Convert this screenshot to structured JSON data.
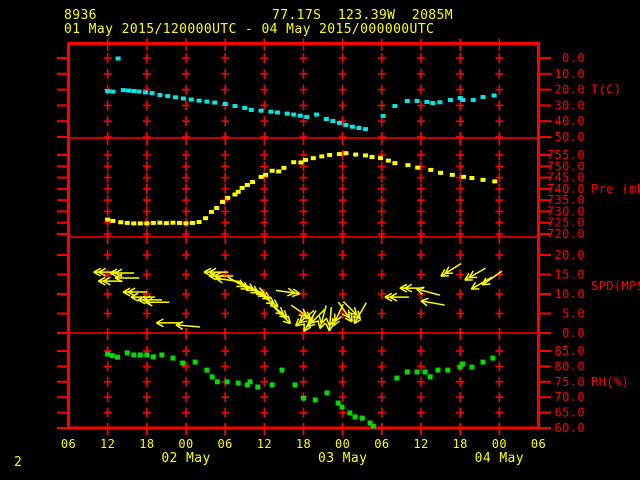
{
  "header": {
    "station_id": "8936",
    "location": "77.17S  123.39W  2085M",
    "period": "01 May 2015/120000UTC - 04 May 2015/000000UTC"
  },
  "footer": {
    "page_number": "2"
  },
  "colors": {
    "background": "#000000",
    "axis": "#ff0000",
    "header_text": "#ffff00",
    "temp": "#00e8e8",
    "pressure": "#ffff00",
    "wind": "#ffff00",
    "humidity": "#00dd00"
  },
  "chart_data": {
    "type": "multi-panel-timeseries",
    "title": "AWS meteogram",
    "x_axis": {
      "unit": "hours_from_first_tick_06UTC_01May",
      "tick_step_hours": 6,
      "tick_hours": [
        "06",
        "12",
        "18",
        "00",
        "06",
        "12",
        "18",
        "00",
        "06",
        "12",
        "18",
        "00",
        "06"
      ],
      "date_labels": [
        {
          "text": "02 May",
          "tick_index": 3
        },
        {
          "text": "03 May",
          "tick_index": 7
        },
        {
          "text": "04 May",
          "tick_index": 11
        }
      ]
    },
    "panels": [
      {
        "name": "temperature",
        "type": "scatter",
        "ylabel": "T(C)",
        "ylabel_row": 2,
        "color_key": "temp",
        "yticks": [
          "0.0",
          "-10.0",
          "-20.0",
          "-30.0",
          "-40.0",
          "-50.0"
        ],
        "points": [
          [
            6,
            -21.0
          ],
          [
            6.8,
            -21.3
          ],
          [
            7.6,
            -0.3
          ],
          [
            8.4,
            -20.3
          ],
          [
            9.2,
            -20.6
          ],
          [
            10,
            -20.9
          ],
          [
            10.8,
            -21.2
          ],
          [
            11.8,
            -21.8
          ],
          [
            12.8,
            -22.2
          ],
          [
            14,
            -23.4
          ],
          [
            15.2,
            -24.1
          ],
          [
            16.4,
            -24.9
          ],
          [
            17.6,
            -25.6
          ],
          [
            18.8,
            -26.3
          ],
          [
            20,
            -27.0
          ],
          [
            21.2,
            -27.6
          ],
          [
            22.4,
            -28.2
          ],
          [
            24,
            -29.1
          ],
          [
            25.5,
            -30.4
          ],
          [
            27,
            -31.6
          ],
          [
            28,
            -32.9
          ],
          [
            29.5,
            -33.3
          ],
          [
            31,
            -34.0
          ],
          [
            32,
            -34.5
          ],
          [
            33.5,
            -35.2
          ],
          [
            34.5,
            -35.8
          ],
          [
            35.5,
            -36.5
          ],
          [
            36.5,
            -37.3
          ],
          [
            38,
            -35.8
          ],
          [
            39.5,
            -38.6
          ],
          [
            40.5,
            -39.9
          ],
          [
            41.5,
            -41.1
          ],
          [
            42.5,
            -42.4
          ],
          [
            43.5,
            -43.5
          ],
          [
            44.5,
            -44.3
          ],
          [
            45.5,
            -45.0
          ],
          [
            48.2,
            -36.7
          ],
          [
            50,
            -30.4
          ],
          [
            51.9,
            -27.2
          ],
          [
            53.4,
            -27.2
          ],
          [
            54.9,
            -27.8
          ],
          [
            55.8,
            -28.5
          ],
          [
            56.9,
            -28.0
          ],
          [
            58.5,
            -26.6
          ],
          [
            60,
            -25.3
          ],
          [
            60.4,
            -26.6
          ],
          [
            62,
            -26.6
          ],
          [
            63.5,
            -24.7
          ],
          [
            65.2,
            -23.7
          ]
        ]
      },
      {
        "name": "pressure",
        "type": "scatter",
        "ylabel": "Pre (mb)",
        "ylabel_row": 3,
        "color_key": "pressure",
        "yticks": [
          "755.0",
          "750.0",
          "745.0",
          "740.0",
          "735.0",
          "730.0",
          "725.0",
          "720.0"
        ],
        "points": [
          [
            6,
            726.4
          ],
          [
            6.8,
            725.8
          ],
          [
            8,
            725.2
          ],
          [
            9,
            724.9
          ],
          [
            10,
            724.7
          ],
          [
            11,
            724.7
          ],
          [
            12,
            724.7
          ],
          [
            13,
            724.9
          ],
          [
            14,
            725.0
          ],
          [
            15,
            724.8
          ],
          [
            16,
            725.0
          ],
          [
            17,
            724.9
          ],
          [
            18,
            724.7
          ],
          [
            19,
            724.9
          ],
          [
            20,
            725.3
          ],
          [
            21,
            727.0
          ],
          [
            21.9,
            729.8
          ],
          [
            22.7,
            731.5
          ],
          [
            23.6,
            734.2
          ],
          [
            24.4,
            736.0
          ],
          [
            25.5,
            737.5
          ],
          [
            26,
            738.7
          ],
          [
            26.6,
            740.4
          ],
          [
            27.4,
            741.7
          ],
          [
            28.2,
            743.0
          ],
          [
            29.5,
            745.3
          ],
          [
            30.2,
            746.2
          ],
          [
            31.2,
            748.0
          ],
          [
            32.2,
            747.7
          ],
          [
            33,
            749.3
          ],
          [
            34.5,
            751.8
          ],
          [
            35.6,
            751.7
          ],
          [
            36.3,
            752.8
          ],
          [
            37.5,
            753.6
          ],
          [
            38.8,
            754.4
          ],
          [
            40,
            755.0
          ],
          [
            41.5,
            755.4
          ],
          [
            42.5,
            755.8
          ],
          [
            44,
            755.2
          ],
          [
            45.5,
            754.8
          ],
          [
            46.5,
            754.1
          ],
          [
            47.8,
            753.6
          ],
          [
            49,
            752.5
          ],
          [
            50,
            751.4
          ],
          [
            52,
            750.5
          ],
          [
            53.5,
            749.4
          ],
          [
            55.5,
            748.4
          ],
          [
            57,
            747.1
          ],
          [
            58.8,
            746.2
          ],
          [
            60.5,
            745.3
          ],
          [
            61.8,
            744.8
          ],
          [
            63.5,
            744.0
          ],
          [
            65.3,
            743.3
          ]
        ]
      },
      {
        "name": "wind_speed",
        "type": "wind-arrows",
        "ylabel": "SPD(MPS)",
        "ylabel_row": 1.6,
        "color_key": "wind",
        "yticks": [
          "20.0",
          "15.0",
          "10.0",
          "5.0",
          "0.0"
        ],
        "arrow_format": [
          "hours",
          "speed_mps",
          "angle_deg_screen",
          "head_count"
        ],
        "arrows": [
          [
            5.7,
            15.6,
            180,
            2
          ],
          [
            6.4,
            13.3,
            180,
            2
          ],
          [
            8.2,
            15.4,
            180,
            2
          ],
          [
            9.0,
            14.1,
            180,
            1
          ],
          [
            10.2,
            10.5,
            180,
            2
          ],
          [
            11.4,
            9.2,
            180,
            1
          ],
          [
            12.5,
            8.5,
            180,
            2
          ],
          [
            13.6,
            7.9,
            180,
            1
          ],
          [
            15.3,
            2.6,
            180,
            1
          ],
          [
            18.3,
            1.8,
            185,
            1
          ],
          [
            22.6,
            15.6,
            180,
            2
          ],
          [
            23.4,
            14.6,
            180,
            2
          ],
          [
            24.4,
            13.6,
            188,
            1
          ],
          [
            26.0,
            12.8,
            30,
            2
          ],
          [
            27.5,
            11.8,
            30,
            2
          ],
          [
            28.3,
            11.3,
            25,
            1
          ],
          [
            29.3,
            10.3,
            30,
            2
          ],
          [
            30.6,
            8.5,
            35,
            2
          ],
          [
            32.1,
            5.9,
            40,
            2
          ],
          [
            32.7,
            4.6,
            45,
            1
          ],
          [
            33.6,
            10.5,
            8,
            2
          ],
          [
            35.6,
            5.4,
            35,
            2
          ],
          [
            36.2,
            3.8,
            140,
            2
          ],
          [
            37.0,
            3.1,
            120,
            1
          ],
          [
            37.9,
            3.8,
            135,
            2
          ],
          [
            39.0,
            4.1,
            105,
            2
          ],
          [
            40.1,
            3.6,
            95,
            2
          ],
          [
            41.3,
            4.6,
            115,
            2
          ],
          [
            42.4,
            5.4,
            55,
            2
          ],
          [
            43.4,
            5.9,
            45,
            2
          ],
          [
            44.7,
            5.1,
            120,
            1
          ],
          [
            50.3,
            9.2,
            180,
            2
          ],
          [
            52.6,
            11.5,
            180,
            2
          ],
          [
            55.1,
            10.5,
            195,
            1
          ],
          [
            55.8,
            7.7,
            190,
            1
          ],
          [
            58.6,
            16.2,
            148,
            2
          ],
          [
            62.3,
            15.1,
            150,
            2
          ],
          [
            63.3,
            12.8,
            150,
            1
          ],
          [
            64.9,
            14.1,
            145,
            1
          ]
        ]
      },
      {
        "name": "relative_humidity",
        "type": "scatter",
        "ylabel": "RH(%)",
        "ylabel_row": 2,
        "color_key": "humidity",
        "yticks": [
          "85.0",
          "80.0",
          "75.0",
          "70.0",
          "65.0",
          "60.0"
        ],
        "points": [
          [
            6,
            84.0
          ],
          [
            6.7,
            83.5
          ],
          [
            7.5,
            83.0
          ],
          [
            9,
            84.4
          ],
          [
            10,
            83.7
          ],
          [
            11,
            83.7
          ],
          [
            12,
            83.7
          ],
          [
            13,
            83.1
          ],
          [
            14.3,
            83.7
          ],
          [
            16,
            82.7
          ],
          [
            17.5,
            81.1
          ],
          [
            19.4,
            81.4
          ],
          [
            21.2,
            78.8
          ],
          [
            22,
            76.6
          ],
          [
            22.8,
            75.0
          ],
          [
            24.3,
            75.0
          ],
          [
            26,
            74.6
          ],
          [
            27.4,
            74.0
          ],
          [
            27.8,
            75.0
          ],
          [
            29,
            73.3
          ],
          [
            31.2,
            74.0
          ],
          [
            32.7,
            78.8
          ],
          [
            34.7,
            74.0
          ],
          [
            36,
            69.7
          ],
          [
            37.8,
            69.1
          ],
          [
            39.6,
            71.4
          ],
          [
            41.3,
            68.1
          ],
          [
            41.9,
            66.8
          ],
          [
            43.1,
            64.9
          ],
          [
            43.9,
            63.6
          ],
          [
            45,
            63.2
          ],
          [
            46.2,
            61.6
          ],
          [
            46.7,
            60.6
          ],
          [
            50.3,
            76.2
          ],
          [
            51.9,
            78.2
          ],
          [
            53.4,
            78.2
          ],
          [
            54.6,
            78.2
          ],
          [
            55.4,
            76.6
          ],
          [
            56.6,
            78.8
          ],
          [
            58.1,
            78.8
          ],
          [
            60,
            79.8
          ],
          [
            60.4,
            80.8
          ],
          [
            61.8,
            79.8
          ],
          [
            63.5,
            81.4
          ],
          [
            65,
            82.7
          ]
        ]
      }
    ]
  }
}
